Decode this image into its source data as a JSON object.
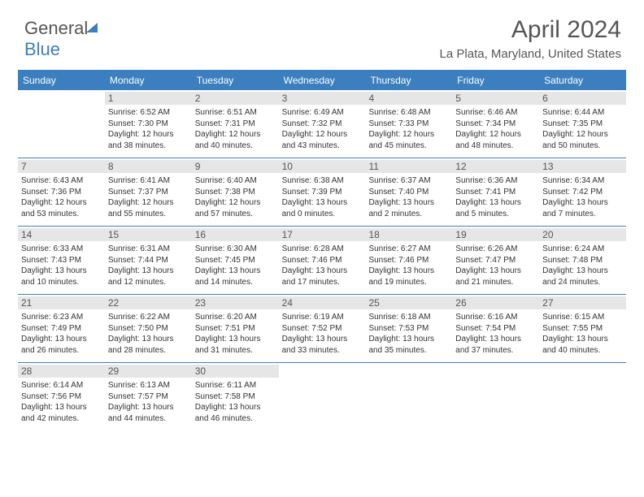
{
  "logo": {
    "part1": "General",
    "part2": "Blue"
  },
  "title": "April 2024",
  "location": "La Plata, Maryland, United States",
  "headers": [
    "Sunday",
    "Monday",
    "Tuesday",
    "Wednesday",
    "Thursday",
    "Friday",
    "Saturday"
  ],
  "colors": {
    "accent": "#3b7fbf",
    "header_bg": "#3b7fbf",
    "header_text": "#ffffff",
    "daynum_bg": "#e6e6e6",
    "text": "#333333"
  },
  "weeks": [
    [
      {
        "num": "",
        "sunrise": "",
        "sunset": "",
        "daylight": ""
      },
      {
        "num": "1",
        "sunrise": "Sunrise: 6:52 AM",
        "sunset": "Sunset: 7:30 PM",
        "daylight": "Daylight: 12 hours and 38 minutes."
      },
      {
        "num": "2",
        "sunrise": "Sunrise: 6:51 AM",
        "sunset": "Sunset: 7:31 PM",
        "daylight": "Daylight: 12 hours and 40 minutes."
      },
      {
        "num": "3",
        "sunrise": "Sunrise: 6:49 AM",
        "sunset": "Sunset: 7:32 PM",
        "daylight": "Daylight: 12 hours and 43 minutes."
      },
      {
        "num": "4",
        "sunrise": "Sunrise: 6:48 AM",
        "sunset": "Sunset: 7:33 PM",
        "daylight": "Daylight: 12 hours and 45 minutes."
      },
      {
        "num": "5",
        "sunrise": "Sunrise: 6:46 AM",
        "sunset": "Sunset: 7:34 PM",
        "daylight": "Daylight: 12 hours and 48 minutes."
      },
      {
        "num": "6",
        "sunrise": "Sunrise: 6:44 AM",
        "sunset": "Sunset: 7:35 PM",
        "daylight": "Daylight: 12 hours and 50 minutes."
      }
    ],
    [
      {
        "num": "7",
        "sunrise": "Sunrise: 6:43 AM",
        "sunset": "Sunset: 7:36 PM",
        "daylight": "Daylight: 12 hours and 53 minutes."
      },
      {
        "num": "8",
        "sunrise": "Sunrise: 6:41 AM",
        "sunset": "Sunset: 7:37 PM",
        "daylight": "Daylight: 12 hours and 55 minutes."
      },
      {
        "num": "9",
        "sunrise": "Sunrise: 6:40 AM",
        "sunset": "Sunset: 7:38 PM",
        "daylight": "Daylight: 12 hours and 57 minutes."
      },
      {
        "num": "10",
        "sunrise": "Sunrise: 6:38 AM",
        "sunset": "Sunset: 7:39 PM",
        "daylight": "Daylight: 13 hours and 0 minutes."
      },
      {
        "num": "11",
        "sunrise": "Sunrise: 6:37 AM",
        "sunset": "Sunset: 7:40 PM",
        "daylight": "Daylight: 13 hours and 2 minutes."
      },
      {
        "num": "12",
        "sunrise": "Sunrise: 6:36 AM",
        "sunset": "Sunset: 7:41 PM",
        "daylight": "Daylight: 13 hours and 5 minutes."
      },
      {
        "num": "13",
        "sunrise": "Sunrise: 6:34 AM",
        "sunset": "Sunset: 7:42 PM",
        "daylight": "Daylight: 13 hours and 7 minutes."
      }
    ],
    [
      {
        "num": "14",
        "sunrise": "Sunrise: 6:33 AM",
        "sunset": "Sunset: 7:43 PM",
        "daylight": "Daylight: 13 hours and 10 minutes."
      },
      {
        "num": "15",
        "sunrise": "Sunrise: 6:31 AM",
        "sunset": "Sunset: 7:44 PM",
        "daylight": "Daylight: 13 hours and 12 minutes."
      },
      {
        "num": "16",
        "sunrise": "Sunrise: 6:30 AM",
        "sunset": "Sunset: 7:45 PM",
        "daylight": "Daylight: 13 hours and 14 minutes."
      },
      {
        "num": "17",
        "sunrise": "Sunrise: 6:28 AM",
        "sunset": "Sunset: 7:46 PM",
        "daylight": "Daylight: 13 hours and 17 minutes."
      },
      {
        "num": "18",
        "sunrise": "Sunrise: 6:27 AM",
        "sunset": "Sunset: 7:46 PM",
        "daylight": "Daylight: 13 hours and 19 minutes."
      },
      {
        "num": "19",
        "sunrise": "Sunrise: 6:26 AM",
        "sunset": "Sunset: 7:47 PM",
        "daylight": "Daylight: 13 hours and 21 minutes."
      },
      {
        "num": "20",
        "sunrise": "Sunrise: 6:24 AM",
        "sunset": "Sunset: 7:48 PM",
        "daylight": "Daylight: 13 hours and 24 minutes."
      }
    ],
    [
      {
        "num": "21",
        "sunrise": "Sunrise: 6:23 AM",
        "sunset": "Sunset: 7:49 PM",
        "daylight": "Daylight: 13 hours and 26 minutes."
      },
      {
        "num": "22",
        "sunrise": "Sunrise: 6:22 AM",
        "sunset": "Sunset: 7:50 PM",
        "daylight": "Daylight: 13 hours and 28 minutes."
      },
      {
        "num": "23",
        "sunrise": "Sunrise: 6:20 AM",
        "sunset": "Sunset: 7:51 PM",
        "daylight": "Daylight: 13 hours and 31 minutes."
      },
      {
        "num": "24",
        "sunrise": "Sunrise: 6:19 AM",
        "sunset": "Sunset: 7:52 PM",
        "daylight": "Daylight: 13 hours and 33 minutes."
      },
      {
        "num": "25",
        "sunrise": "Sunrise: 6:18 AM",
        "sunset": "Sunset: 7:53 PM",
        "daylight": "Daylight: 13 hours and 35 minutes."
      },
      {
        "num": "26",
        "sunrise": "Sunrise: 6:16 AM",
        "sunset": "Sunset: 7:54 PM",
        "daylight": "Daylight: 13 hours and 37 minutes."
      },
      {
        "num": "27",
        "sunrise": "Sunrise: 6:15 AM",
        "sunset": "Sunset: 7:55 PM",
        "daylight": "Daylight: 13 hours and 40 minutes."
      }
    ],
    [
      {
        "num": "28",
        "sunrise": "Sunrise: 6:14 AM",
        "sunset": "Sunset: 7:56 PM",
        "daylight": "Daylight: 13 hours and 42 minutes."
      },
      {
        "num": "29",
        "sunrise": "Sunrise: 6:13 AM",
        "sunset": "Sunset: 7:57 PM",
        "daylight": "Daylight: 13 hours and 44 minutes."
      },
      {
        "num": "30",
        "sunrise": "Sunrise: 6:11 AM",
        "sunset": "Sunset: 7:58 PM",
        "daylight": "Daylight: 13 hours and 46 minutes."
      },
      {
        "num": "",
        "sunrise": "",
        "sunset": "",
        "daylight": ""
      },
      {
        "num": "",
        "sunrise": "",
        "sunset": "",
        "daylight": ""
      },
      {
        "num": "",
        "sunrise": "",
        "sunset": "",
        "daylight": ""
      },
      {
        "num": "",
        "sunrise": "",
        "sunset": "",
        "daylight": ""
      }
    ]
  ]
}
